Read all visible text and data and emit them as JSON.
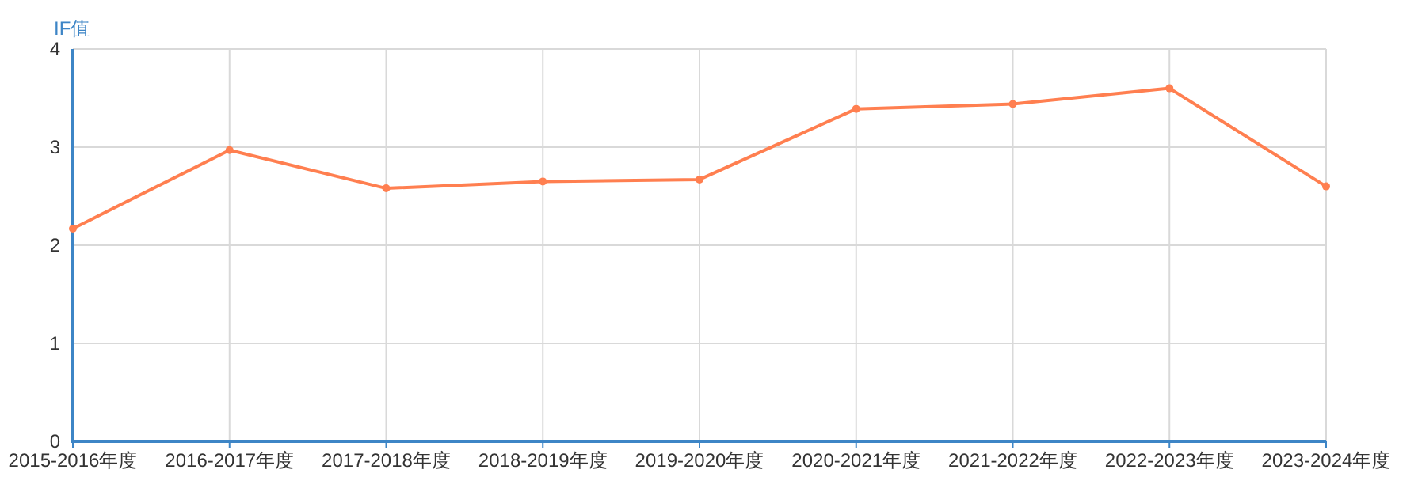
{
  "chart_data": {
    "type": "line",
    "ylabel": "IF值",
    "categories": [
      "2015-2016年度",
      "2016-2017年度",
      "2017-2018年度",
      "2018-2019年度",
      "2019-2020年度",
      "2020-2021年度",
      "2021-2022年度",
      "2022-2023年度",
      "2023-2024年度"
    ],
    "series": [
      {
        "color": "#ff7f50",
        "values": [
          2.17,
          2.97,
          2.58,
          2.65,
          2.67,
          3.39,
          3.44,
          3.6,
          2.6
        ]
      }
    ],
    "ylim": [
      0,
      4
    ],
    "yticks": [
      0,
      1,
      2,
      3,
      4
    ],
    "grid": true,
    "marker": "circle",
    "line_style": "solid"
  }
}
